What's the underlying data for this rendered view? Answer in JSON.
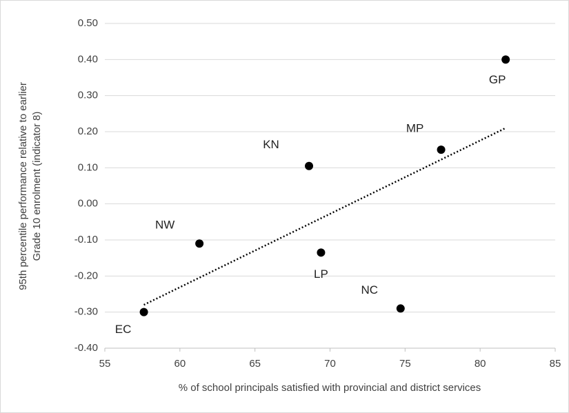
{
  "chart_data": {
    "type": "scatter",
    "x_label": "% of school principals satisfied with provincial and district services",
    "y_label": [
      "95th percentile performance relative to earlier",
      "Grade 10 enrolment (indicator 8)"
    ],
    "labels": [
      "GP",
      "MP",
      "KN",
      "NW",
      "LP",
      "NC",
      "EC"
    ],
    "x": [
      81.7,
      77.4,
      68.6,
      61.3,
      69.4,
      74.7,
      57.6
    ],
    "values": [
      0.4,
      0.15,
      0.105,
      -0.11,
      -0.135,
      -0.29,
      -0.3
    ],
    "color": "#000000",
    "trendline": true,
    "grid": true,
    "xlim": [
      55,
      85
    ],
    "xticks": [
      55,
      60,
      65,
      70,
      75,
      80,
      85
    ],
    "ylim": [
      -0.4,
      0.5
    ],
    "yticks": [
      {
        "value": -0.4,
        "label": "-0.40"
      },
      {
        "value": -0.3,
        "label": "-0.30"
      },
      {
        "value": -0.2,
        "label": "-0.20"
      },
      {
        "value": -0.1,
        "label": "-0.10"
      },
      {
        "value": 0,
        "label": "0.00"
      },
      {
        "value": 0.1,
        "label": "0.10"
      },
      {
        "value": 0.2,
        "label": "0.20"
      },
      {
        "value": 0.3,
        "label": "0.30"
      },
      {
        "value": 0.4,
        "label": "0.40"
      },
      {
        "value": 0.5,
        "label": "0.50"
      }
    ]
  }
}
